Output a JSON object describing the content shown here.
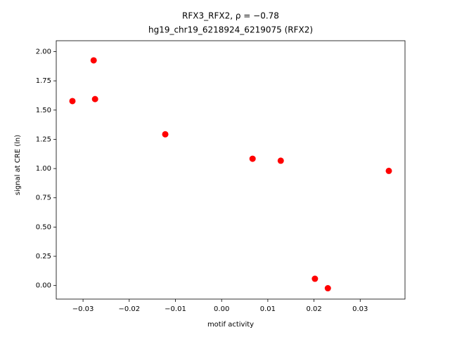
{
  "chart_data": {
    "type": "scatter",
    "title": "RFX3_RFX2, ρ = −0.78",
    "subtitle": "hg19_chr19_6218924_6219075 (RFX2)",
    "x_label": "motif activity",
    "y_label": "signal at CRE (ln)",
    "color": "#ff0000",
    "x": [
      -0.0323,
      -0.0277,
      -0.0274,
      -0.0122,
      0.0067,
      0.0128,
      0.0362,
      0.0202,
      0.023
    ],
    "values": [
      1.577,
      1.925,
      1.594,
      1.293,
      1.084,
      1.067,
      0.98,
      0.058,
      -0.023
    ],
    "xlim": [
      -0.0358,
      0.0397
    ],
    "ylim": [
      -0.116,
      2.093
    ],
    "xticks": [
      {
        "value": -0.03,
        "label": "−0.03"
      },
      {
        "value": -0.02,
        "label": "−0.02"
      },
      {
        "value": -0.01,
        "label": "−0.01"
      },
      {
        "value": 0,
        "label": "0.00"
      },
      {
        "value": 0.01,
        "label": "0.01"
      },
      {
        "value": 0.02,
        "label": "0.02"
      },
      {
        "value": 0.03,
        "label": "0.03"
      }
    ],
    "yticks": [
      {
        "value": 0,
        "label": "0.00"
      },
      {
        "value": 0.25,
        "label": "0.25"
      },
      {
        "value": 0.5,
        "label": "0.50"
      },
      {
        "value": 0.75,
        "label": "0.75"
      },
      {
        "value": 1,
        "label": "1.00"
      },
      {
        "value": 1.25,
        "label": "1.25"
      },
      {
        "value": 1.5,
        "label": "1.50"
      },
      {
        "value": 1.75,
        "label": "1.75"
      },
      {
        "value": 2,
        "label": "2.00"
      }
    ]
  }
}
